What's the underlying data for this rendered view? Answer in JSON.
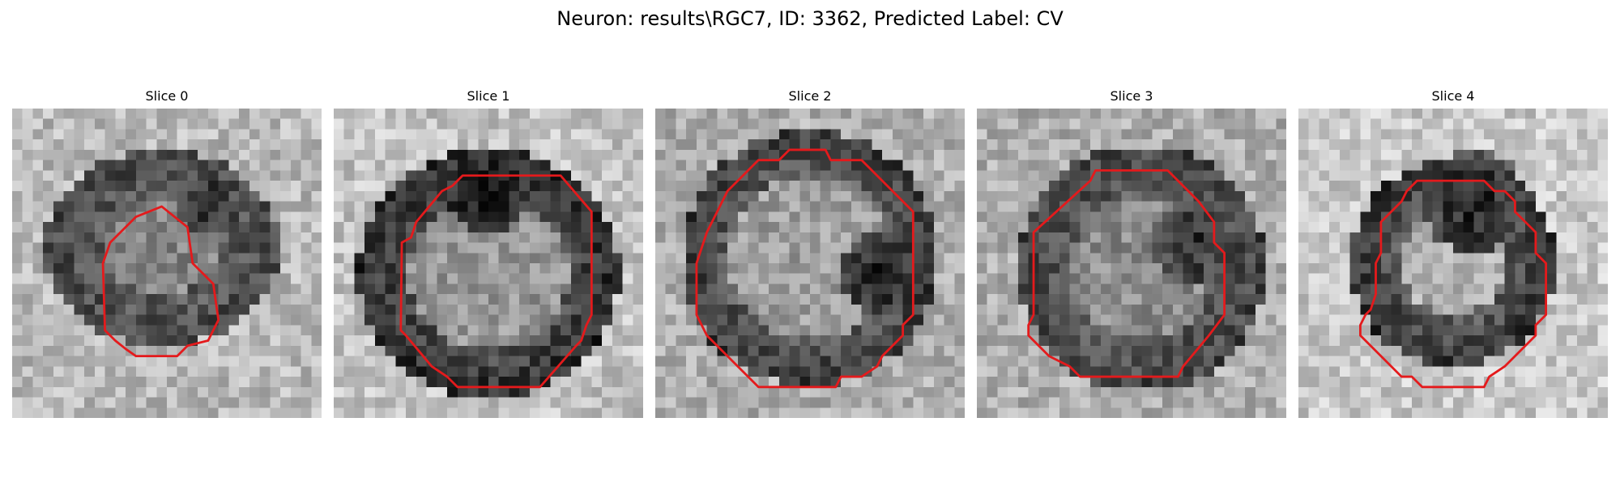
{
  "title": "Neuron: results\\RGC7, ID: 3362, Predicted Label: CV",
  "slices": [
    {
      "title": "Slice 0"
    },
    {
      "title": "Slice 1"
    },
    {
      "title": "Slice 2"
    },
    {
      "title": "Slice 3"
    },
    {
      "title": "Slice 4"
    }
  ],
  "colors": {
    "contour": "#e41a1c",
    "background": "#ffffff"
  }
}
